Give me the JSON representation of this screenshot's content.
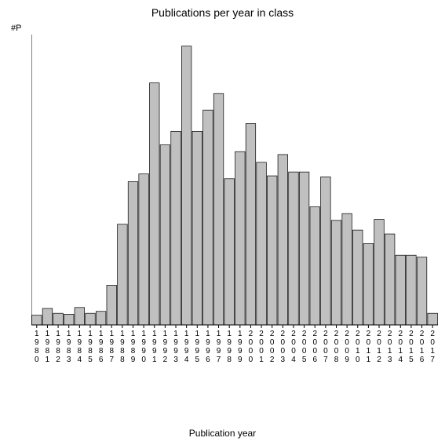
{
  "chart": {
    "type": "bar",
    "title": "Publications per year in class",
    "title_fontsize": 14,
    "y_axis_label": "#P",
    "x_axis_label": "Publication year",
    "label_fontsize": 12,
    "years": [
      "1980",
      "1981",
      "1982",
      "1983",
      "1984",
      "1985",
      "1986",
      "1987",
      "1988",
      "1989",
      "1990",
      "1991",
      "1992",
      "1993",
      "1994",
      "1995",
      "1996",
      "1997",
      "1998",
      "1999",
      "2000",
      "2001",
      "2002",
      "2003",
      "2004",
      "2005",
      "2006",
      "2007",
      "2008",
      "2009",
      "2010",
      "2011",
      "2012",
      "2013",
      "2014",
      "2015",
      "2016",
      "2017"
    ],
    "values": [
      50,
      85,
      60,
      55,
      90,
      60,
      70,
      205,
      520,
      740,
      780,
      1250,
      930,
      1000,
      1440,
      1000,
      1110,
      1195,
      755,
      895,
      1040,
      840,
      770,
      880,
      790,
      790,
      610,
      765,
      540,
      575,
      490,
      420,
      545,
      470,
      360,
      360,
      350,
      60
    ],
    "ylim": [
      0,
      1500
    ],
    "ytick_step": 100,
    "bar_fill": "#c0c0c0",
    "bar_stroke": "#000000",
    "background_color": "#ffffff",
    "axis_color": "#000000",
    "bar_gap_ratio": 0.08,
    "tick_label_fontsize": 10
  }
}
